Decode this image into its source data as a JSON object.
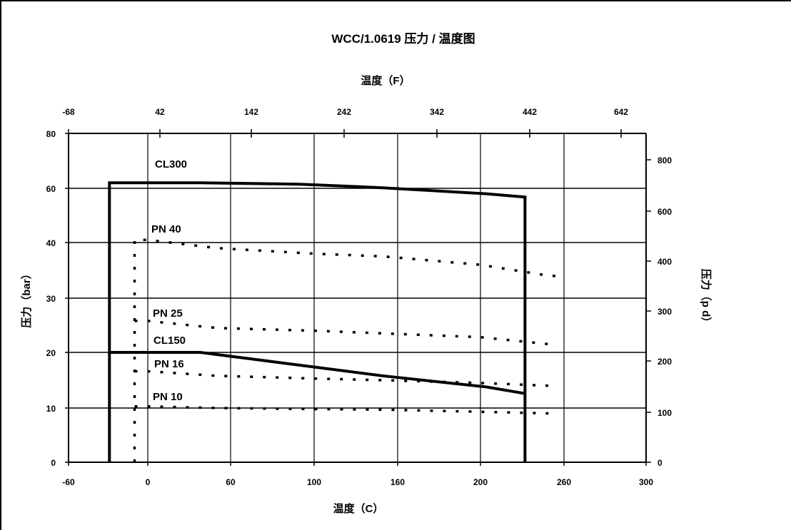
{
  "chart_data": {
    "type": "line",
    "title": "WCC/1.0619 压力 / 温度图",
    "xlabel": "温度（C）",
    "x2label": "温度（F）",
    "ylabel": "压力（bar）",
    "y2label": "压力（p d）",
    "xlim": [
      -60,
      300
    ],
    "ylim": [
      0,
      80
    ],
    "x2lim": [
      -68,
      642
    ],
    "y2lim": [
      0,
      880
    ],
    "x_ticks": [
      "-60",
      "0",
      "60",
      "100",
      "160",
      "200",
      "260",
      "300"
    ],
    "y_ticks": [
      "0",
      "10",
      "20",
      "30",
      "40",
      "60",
      "80"
    ],
    "x2_ticks": [
      "-68",
      "42",
      "142",
      "242",
      "342",
      "442",
      "642"
    ],
    "y2_ticks": [
      "0",
      "100",
      "200",
      "300",
      "400",
      "600",
      "800"
    ],
    "grid": true,
    "series": [
      {
        "name": "CL300",
        "style": "solid",
        "x": [
          -29,
          -29,
          38,
          93,
          149,
          204,
          232,
          232
        ],
        "y": [
          0,
          62,
          62,
          61.5,
          60.2,
          58,
          56.8,
          0
        ]
      },
      {
        "name": "CL150",
        "style": "solid",
        "x": [
          -29,
          38,
          93,
          149,
          204,
          232
        ],
        "y": [
          20,
          20,
          17.7,
          15.8,
          13.8,
          12.6
        ]
      },
      {
        "name": "PN 40",
        "style": "dashed",
        "x": [
          -10,
          -10,
          0,
          50,
          100,
          150,
          200,
          250,
          260
        ],
        "y": [
          0,
          41,
          41,
          39,
          38,
          37.5,
          36,
          34,
          34
        ]
      },
      {
        "name": "PN 25",
        "style": "dashed",
        "x": [
          -10,
          0,
          50,
          100,
          150,
          200,
          250
        ],
        "y": [
          25.8,
          25.8,
          24.5,
          24,
          23.5,
          22.8,
          21.5
        ]
      },
      {
        "name": "PN 16",
        "style": "dashed",
        "x": [
          -10,
          0,
          50,
          100,
          150,
          200,
          250
        ],
        "y": [
          16.6,
          16.6,
          15.8,
          15.3,
          15,
          14.5,
          14
        ]
      },
      {
        "name": "PN 10",
        "style": "dashed",
        "x": [
          -10,
          0,
          50,
          100,
          150,
          200,
          250
        ],
        "y": [
          10.3,
          10.3,
          10,
          9.8,
          9.7,
          9.3,
          9
        ]
      }
    ]
  }
}
